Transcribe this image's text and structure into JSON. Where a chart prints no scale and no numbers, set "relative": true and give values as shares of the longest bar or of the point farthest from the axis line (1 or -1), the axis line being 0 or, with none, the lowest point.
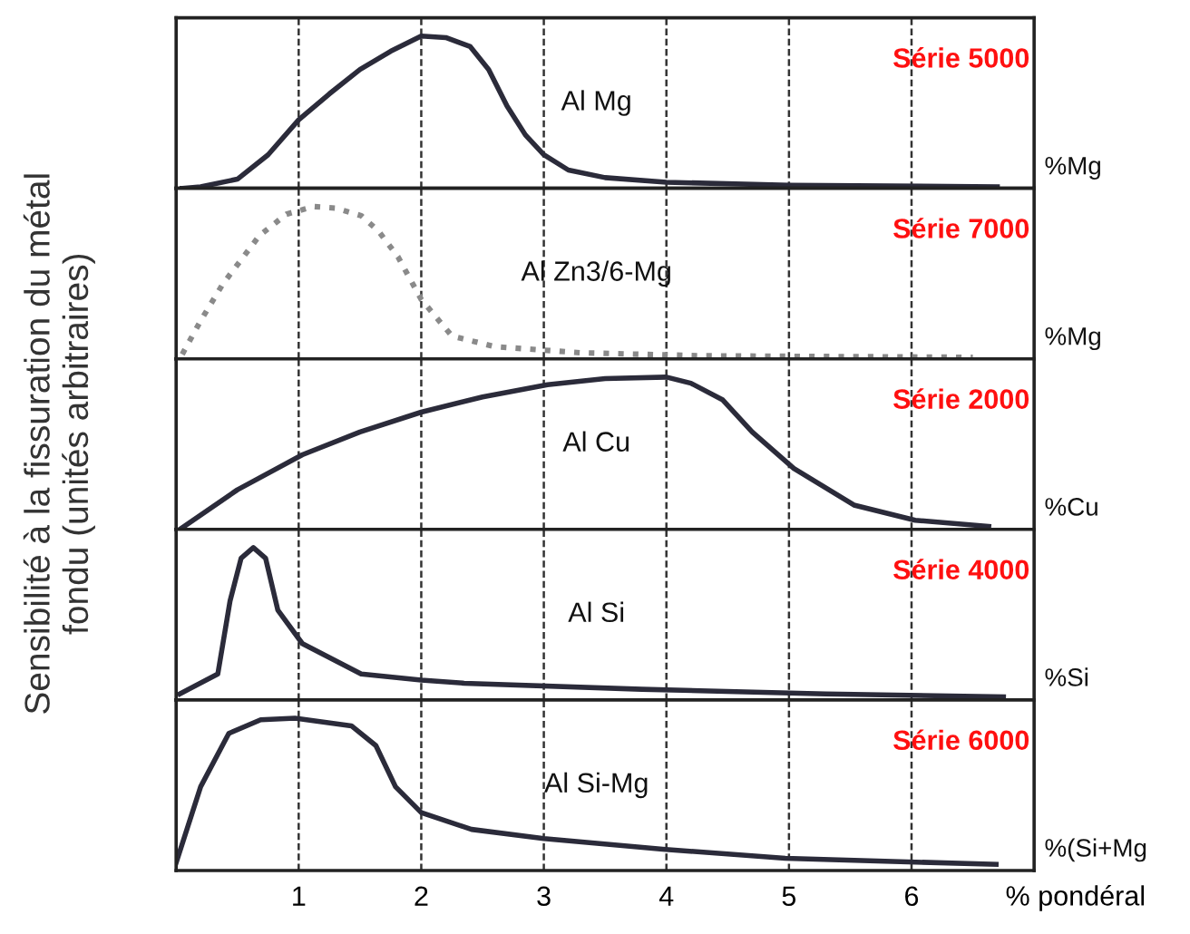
{
  "chart_data": [
    {
      "type": "line",
      "relative": true,
      "xlim": [
        0,
        7
      ],
      "xticks": [
        1,
        2,
        3,
        4,
        5,
        6
      ],
      "tick_labels": false,
      "grid": "x",
      "line_style": "solid",
      "marker": "none",
      "series": [
        {
          "color": "#2b2b3a",
          "x": [
            0.05,
            0.2,
            0.5,
            0.75,
            1.0,
            1.25,
            1.5,
            1.75,
            2.0,
            2.2,
            2.4,
            2.55,
            2.7,
            2.85,
            3.0,
            3.2,
            3.5,
            4.0,
            5.0,
            6.7
          ],
          "values": [
            0,
            0.01,
            0.06,
            0.22,
            0.45,
            0.62,
            0.78,
            0.9,
            1.0,
            0.99,
            0.93,
            0.78,
            0.54,
            0.35,
            0.22,
            0.12,
            0.07,
            0.04,
            0.02,
            0.01
          ]
        }
      ],
      "annotations": [
        "Al Mg",
        "Série 5000",
        "%Mg"
      ]
    },
    {
      "type": "line",
      "relative": true,
      "xlim": [
        0,
        7
      ],
      "xticks": [
        1,
        2,
        3,
        4,
        5,
        6
      ],
      "tick_labels": false,
      "grid": "x",
      "line_style": "dotted",
      "marker": "none",
      "series": [
        {
          "color": "#8a8a8a",
          "x": [
            0.05,
            0.2,
            0.38,
            0.68,
            0.9,
            1.12,
            1.3,
            1.51,
            1.65,
            1.81,
            2.0,
            2.25,
            2.6,
            3.3,
            4.3,
            6.5
          ],
          "values": [
            0.03,
            0.25,
            0.49,
            0.81,
            0.95,
            1.0,
            0.99,
            0.94,
            0.84,
            0.67,
            0.39,
            0.15,
            0.08,
            0.04,
            0.02,
            0.01
          ]
        }
      ],
      "annotations": [
        "Al Zn3/6-Mg",
        "Série 7000",
        "%Mg"
      ]
    },
    {
      "type": "line",
      "relative": true,
      "xlim": [
        0,
        7
      ],
      "xticks": [
        1,
        2,
        3,
        4,
        5,
        6
      ],
      "tick_labels": false,
      "grid": "x",
      "line_style": "solid",
      "marker": "none",
      "ylabel": "Sensibilité à la fissuration du métal\nfondu (unités arbitraires)",
      "series": [
        {
          "color": "#2b2b3a",
          "x": [
            0.03,
            0.5,
            1.03,
            1.5,
            2.0,
            2.5,
            3.03,
            3.5,
            4.0,
            4.2,
            4.46,
            4.7,
            5.04,
            5.53,
            6.03,
            6.63
          ],
          "values": [
            0.0,
            0.26,
            0.49,
            0.64,
            0.77,
            0.87,
            0.95,
            0.99,
            1.0,
            0.96,
            0.85,
            0.64,
            0.4,
            0.16,
            0.06,
            0.02
          ]
        }
      ],
      "annotations": [
        "Al Cu",
        "Série 2000",
        "%Cu"
      ]
    },
    {
      "type": "line",
      "relative": true,
      "xlim": [
        0,
        7
      ],
      "xticks": [
        1,
        2,
        3,
        4,
        5,
        6
      ],
      "tick_labels": false,
      "grid": "x",
      "line_style": "solid",
      "marker": "none",
      "series": [
        {
          "color": "#2b2b3a",
          "x": [
            0.03,
            0.34,
            0.44,
            0.53,
            0.63,
            0.73,
            0.83,
            1.03,
            1.51,
            2.0,
            2.35,
            3.8,
            5.3,
            6.75
          ],
          "values": [
            0.04,
            0.17,
            0.65,
            0.93,
            1.0,
            0.93,
            0.59,
            0.37,
            0.17,
            0.13,
            0.11,
            0.07,
            0.04,
            0.02
          ]
        }
      ],
      "annotations": [
        "Al Si",
        "Série 4000",
        "%Si"
      ]
    },
    {
      "type": "line",
      "relative": true,
      "xlim": [
        0,
        7
      ],
      "xticks": [
        1,
        2,
        3,
        4,
        5,
        6
      ],
      "tick_labels": "x",
      "grid": "x",
      "line_style": "solid",
      "marker": "none",
      "xlabel": "% pondéral",
      "series": [
        {
          "color": "#2b2b3a",
          "x": [
            0.0,
            0.2,
            0.43,
            0.69,
            0.97,
            1.43,
            1.63,
            1.79,
            2.0,
            2.41,
            3.0,
            3.97,
            4.97,
            6.69
          ],
          "values": [
            0.05,
            0.55,
            0.9,
            0.99,
            1.0,
            0.95,
            0.82,
            0.55,
            0.38,
            0.27,
            0.21,
            0.14,
            0.08,
            0.04
          ]
        }
      ],
      "annotations": [
        "Al Si-Mg",
        "Série 6000",
        "%(Si+Mg"
      ]
    }
  ]
}
